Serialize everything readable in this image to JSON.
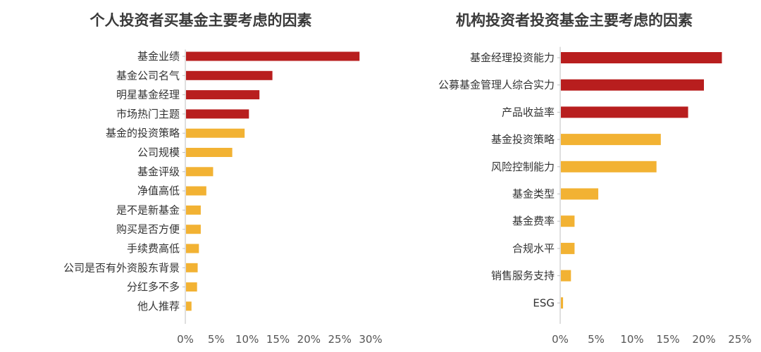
{
  "chart_data": [
    {
      "type": "bar",
      "orientation": "horizontal",
      "title": "个人投资者买基金主要考虑的因素",
      "categories": [
        "基金业绩",
        "基金公司名气",
        "明星基金经理",
        "市场热门主题",
        "基金的投资策略",
        "公司规模",
        "基金评级",
        "净值高低",
        "是不是新基金",
        "购买是否方便",
        "手续费高低",
        "公司是否有外资股东背景",
        "分红多不多",
        "他人推荐"
      ],
      "values": [
        28.2,
        14.1,
        12.0,
        10.3,
        9.6,
        7.6,
        4.5,
        3.4,
        2.5,
        2.5,
        2.2,
        2.0,
        1.9,
        1.0
      ],
      "xlim": [
        0,
        30
      ],
      "ticks": [
        "0%",
        "5%",
        "10%",
        "15%",
        "20%",
        "25%",
        "30%"
      ],
      "tick_values": [
        0,
        5,
        10,
        15,
        20,
        25,
        30
      ],
      "highlight_count": 4
    },
    {
      "type": "bar",
      "orientation": "horizontal",
      "title": "机构投资者投资基金主要考虑的因素",
      "categories": [
        "基金经理投资能力",
        "公募基金管理人综合实力",
        "产品收益率",
        "基金投资策略",
        "风险控制能力",
        "基金类型",
        "基金费率",
        "合规水平",
        "销售服务支持",
        "ESG"
      ],
      "values": [
        22.5,
        20.0,
        17.8,
        14.0,
        13.4,
        5.3,
        2.0,
        2.0,
        1.5,
        0.4
      ],
      "xlim": [
        0,
        25
      ],
      "ticks": [
        "0%",
        "5%",
        "10%",
        "15%",
        "20%",
        "25%"
      ],
      "tick_values": [
        0,
        5,
        10,
        15,
        20,
        25
      ],
      "highlight_count": 3
    }
  ],
  "colors": {
    "highlight": "#b81e1e",
    "normal": "#f2b233",
    "axis": "#bfbfbf"
  }
}
